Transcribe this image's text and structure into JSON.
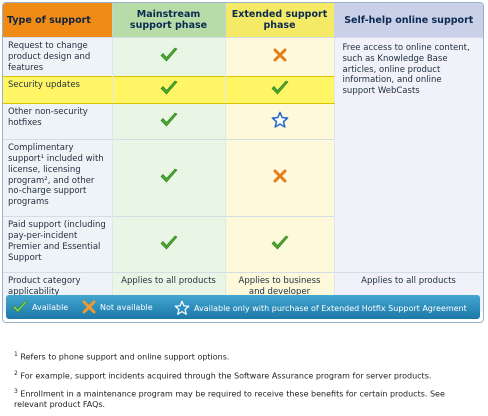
{
  "headers": {
    "type_of_support": "Type of support",
    "mainstream": "Mainstream support phase",
    "extended": "Extended support phase",
    "self_help": "Self-help online support"
  },
  "rows": [
    {
      "label": "Request to change product design and features",
      "mainstream": "check-icon",
      "extended": "x-icon"
    },
    {
      "label": "Security updates",
      "mainstream": "check-icon",
      "extended": "check-icon"
    },
    {
      "label": "Other non-security hotfixes",
      "mainstream": "check-icon",
      "extended": "star-icon"
    },
    {
      "label": "Complimentary support¹ included with license, licensing program², and other no-charge support programs",
      "mainstream": "check-icon",
      "extended": "x-icon"
    },
    {
      "label": "Paid support (including pay-per-incident Premier and Essential Support",
      "mainstream": "check-icon",
      "extended": "check-icon"
    },
    {
      "label": "Product category applicability",
      "mainstream_text": "Applies to all products",
      "extended_text": "Applies to business and developer software only",
      "self_help_text": "Applies to all products"
    }
  ],
  "self_help_description": "Free access to online content, such as Knowledge Base articles, online product information, and online support WebCasts",
  "legend": {
    "available": "Available",
    "not_available": "Not available",
    "extended_hotfix": "Available only with purchase of Extended Hotfix Support Agreement"
  },
  "footnotes": [
    {
      "marker": "1",
      "text": "Refers to phone support and online support options."
    },
    {
      "marker": "2",
      "text": "For example, support incidents acquired through the Software Assurance program for server products."
    },
    {
      "marker": "3",
      "text": "Enrollment in a maintenance program may be required to receive these benefits for certain products. See relevant product FAQs."
    }
  ],
  "colors": {
    "header_orange": "#f08c16",
    "mainstream_green": "#b8dca7",
    "extended_yellow": "#f5ea66",
    "self_help_lavender": "#cad0e7",
    "highlight_yellow": "#fff565",
    "check_green": "#4caa2f",
    "x_orange": "#e27d18",
    "star_blue": "#2d6ec8",
    "legend_blue": "#2b8fc0"
  }
}
